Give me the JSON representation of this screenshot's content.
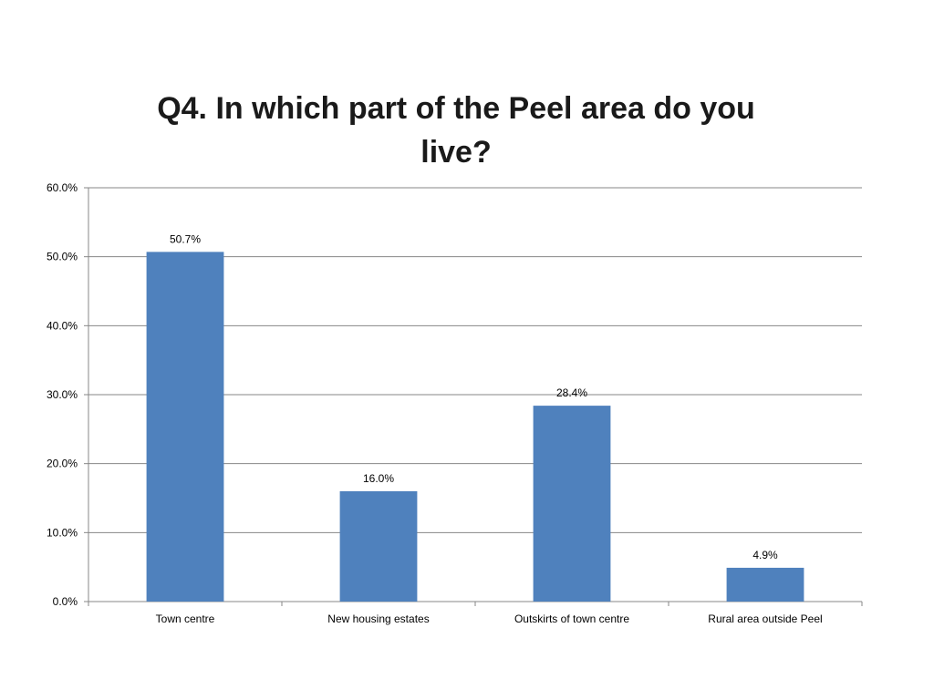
{
  "chart_data": {
    "type": "bar",
    "title": "Q4. In which part of the Peel area do you live?",
    "categories": [
      "Town centre",
      "New housing estates",
      "Outskirts of town centre",
      "Rural area outside Peel"
    ],
    "values": [
      50.7,
      16.0,
      28.4,
      4.9
    ],
    "value_labels": [
      "50.7%",
      "16.0%",
      "28.4%",
      "4.9%"
    ],
    "ylim": [
      0,
      60
    ],
    "yticks": [
      0,
      10,
      20,
      30,
      40,
      50,
      60
    ],
    "ytick_labels": [
      "0.0%",
      "10.0%",
      "20.0%",
      "30.0%",
      "40.0%",
      "50.0%",
      "60.0%"
    ],
    "grid": true,
    "legend": "none",
    "colors": {
      "bar": "#4f81bd",
      "grid": "#878787",
      "axis": "#878787",
      "text": "#000000"
    }
  }
}
